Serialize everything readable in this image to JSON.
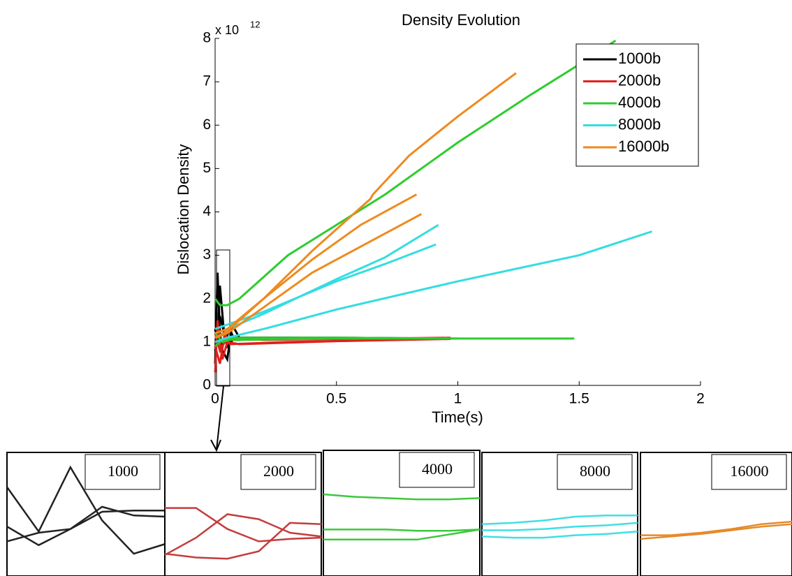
{
  "chart_data": [
    {
      "type": "line",
      "title": "Density Evolution",
      "x_label": "Time(s)",
      "y_label": "Dislocation Density",
      "y_multiplier": "x 10",
      "y_exponent": "12",
      "xlim": [
        0,
        2
      ],
      "xticks": [
        0,
        0.5,
        1,
        1.5,
        2
      ],
      "ylim": [
        0,
        8
      ],
      "yticks": [
        0,
        1,
        2,
        3,
        4,
        5,
        6,
        7,
        8
      ],
      "legend": "upper-right",
      "series": [
        {
          "name": "1000b",
          "color": "#000000",
          "runs": [
            {
              "x": [
                0,
                0.01,
                0.02,
                0.03,
                0.05,
                0.07,
                0.1,
                0.3,
                0.6,
                0.97
              ],
              "values": [
                0.5,
                2.6,
                1.2,
                0.8,
                0.6,
                1.4,
                1.1,
                1.1,
                1.08,
                1.08
              ]
            },
            {
              "x": [
                0,
                0.01,
                0.02,
                0.04,
                0.06,
                0.08,
                0.3,
                0.97
              ],
              "values": [
                1.3,
                1.0,
                2.3,
                1.0,
                1.3,
                1.05,
                1.07,
                1.08
              ]
            },
            {
              "x": [
                0,
                0.02,
                0.05,
                0.08,
                0.5,
                0.97
              ],
              "values": [
                0.8,
                1.6,
                0.9,
                1.1,
                1.1,
                1.08
              ]
            }
          ]
        },
        {
          "name": "2000b",
          "color": "#e0201b",
          "runs": [
            {
              "x": [
                0,
                0.01,
                0.03,
                0.05,
                0.1,
                0.5,
                0.97
              ],
              "values": [
                0.3,
                1.5,
                0.6,
                1.0,
                0.95,
                1.02,
                1.07
              ]
            },
            {
              "x": [
                0,
                0.02,
                0.04,
                0.06,
                0.3,
                0.97
              ],
              "values": [
                0.9,
                0.5,
                1.2,
                0.95,
                1.0,
                1.08
              ]
            },
            {
              "x": [
                0,
                0.02,
                0.05,
                0.2,
                0.97
              ],
              "values": [
                1.2,
                0.8,
                1.1,
                1.05,
                1.1
              ]
            }
          ]
        },
        {
          "name": "4000b",
          "color": "#2ecc2e",
          "runs": [
            {
              "x": [
                0,
                0.02,
                0.05,
                0.1,
                0.2,
                0.3,
                0.5,
                0.7,
                1.0,
                1.3,
                1.5,
                1.65
              ],
              "values": [
                2.0,
                1.85,
                1.85,
                2.0,
                2.5,
                3.0,
                3.7,
                4.4,
                5.6,
                6.7,
                7.4,
                7.95
              ]
            },
            {
              "x": [
                0,
                0.03,
                0.06,
                0.5,
                1.0,
                1.48
              ],
              "values": [
                0.9,
                1.05,
                1.1,
                1.1,
                1.08,
                1.08
              ]
            },
            {
              "x": [
                0,
                0.03,
                0.06,
                0.5,
                1.0
              ],
              "values": [
                1.2,
                1.0,
                1.05,
                1.08,
                1.08
              ]
            }
          ]
        },
        {
          "name": "8000b",
          "color": "#33dde0",
          "runs": [
            {
              "x": [
                0,
                0.05,
                0.2,
                0.5,
                1.0,
                1.5,
                1.8
              ],
              "values": [
                1.0,
                1.1,
                1.3,
                1.75,
                2.4,
                3.0,
                3.55
              ]
            },
            {
              "x": [
                0,
                0.05,
                0.2,
                0.5,
                0.7,
                0.91
              ],
              "values": [
                1.3,
                1.4,
                1.7,
                2.4,
                2.8,
                3.25
              ]
            },
            {
              "x": [
                0,
                0.05,
                0.2,
                0.5,
                0.7,
                0.92
              ],
              "values": [
                1.2,
                1.3,
                1.65,
                2.45,
                2.95,
                3.7
              ]
            }
          ]
        },
        {
          "name": "16000b",
          "color": "#ee8a1e",
          "runs": [
            {
              "x": [
                0,
                0.05,
                0.2,
                0.4,
                0.6,
                0.64,
                0.65,
                0.8,
                1.0,
                1.24
              ],
              "values": [
                1.2,
                1.3,
                2.0,
                3.1,
                4.1,
                4.3,
                4.4,
                5.3,
                6.2,
                7.2
              ]
            },
            {
              "x": [
                0,
                0.05,
                0.2,
                0.4,
                0.6,
                0.83
              ],
              "values": [
                1.1,
                1.25,
                2.0,
                2.9,
                3.7,
                4.4
              ]
            },
            {
              "x": [
                0,
                0.05,
                0.2,
                0.4,
                0.6,
                0.85
              ],
              "values": [
                1.1,
                1.2,
                1.8,
                2.6,
                3.2,
                3.95
              ]
            }
          ]
        }
      ]
    },
    {
      "type": "inset",
      "label": "1000",
      "color": "#222222",
      "xlim": [
        0,
        1
      ],
      "ylim": [
        0,
        1
      ],
      "runs": [
        {
          "x": [
            0,
            0.2,
            0.4,
            0.6,
            0.8,
            1
          ],
          "values": [
            0.72,
            0.36,
            0.88,
            0.45,
            0.18,
            0.26
          ]
        },
        {
          "x": [
            0,
            0.2,
            0.4,
            0.6,
            0.8,
            1
          ],
          "values": [
            0.4,
            0.25,
            0.38,
            0.52,
            0.53,
            0.53
          ]
        },
        {
          "x": [
            0,
            0.2,
            0.4,
            0.6,
            0.8,
            1
          ],
          "values": [
            0.28,
            0.35,
            0.38,
            0.56,
            0.49,
            0.48
          ]
        }
      ]
    },
    {
      "type": "inset",
      "label": "2000",
      "color": "#c43c3c",
      "xlim": [
        0,
        1
      ],
      "ylim": [
        0,
        1
      ],
      "runs": [
        {
          "x": [
            0,
            0.2,
            0.4,
            0.6,
            0.8,
            1
          ],
          "values": [
            0.55,
            0.55,
            0.38,
            0.28,
            0.3,
            0.31
          ]
        },
        {
          "x": [
            0,
            0.2,
            0.4,
            0.6,
            0.8,
            1
          ],
          "values": [
            0.17,
            0.31,
            0.5,
            0.46,
            0.35,
            0.32
          ]
        },
        {
          "x": [
            0,
            0.2,
            0.4,
            0.6,
            0.8,
            1
          ],
          "values": [
            0.18,
            0.15,
            0.14,
            0.2,
            0.43,
            0.42
          ]
        }
      ]
    },
    {
      "type": "inset",
      "label": "4000",
      "color": "#3cc83c",
      "xlim": [
        0,
        1
      ],
      "ylim": [
        0,
        1
      ],
      "runs": [
        {
          "x": [
            0,
            0.2,
            0.4,
            0.6,
            0.8,
            1
          ],
          "values": [
            0.65,
            0.63,
            0.62,
            0.61,
            0.61,
            0.62
          ]
        },
        {
          "x": [
            0,
            0.2,
            0.4,
            0.6,
            0.8,
            1
          ],
          "values": [
            0.37,
            0.37,
            0.37,
            0.36,
            0.36,
            0.37
          ]
        },
        {
          "x": [
            0,
            0.2,
            0.4,
            0.6,
            0.8,
            1
          ],
          "values": [
            0.29,
            0.29,
            0.29,
            0.29,
            0.33,
            0.37
          ]
        }
      ]
    },
    {
      "type": "inset",
      "label": "8000",
      "color": "#40dfe3",
      "xlim": [
        0,
        1
      ],
      "ylim": [
        0,
        1
      ],
      "runs": [
        {
          "x": [
            0,
            0.2,
            0.4,
            0.6,
            0.8,
            1
          ],
          "values": [
            0.42,
            0.43,
            0.45,
            0.48,
            0.49,
            0.49
          ]
        },
        {
          "x": [
            0,
            0.2,
            0.4,
            0.6,
            0.8,
            1
          ],
          "values": [
            0.37,
            0.37,
            0.38,
            0.4,
            0.41,
            0.43
          ]
        },
        {
          "x": [
            0,
            0.2,
            0.4,
            0.6,
            0.8,
            1
          ],
          "values": [
            0.32,
            0.31,
            0.31,
            0.33,
            0.34,
            0.36
          ]
        }
      ]
    },
    {
      "type": "inset",
      "label": "16000",
      "color": "#e58a2a",
      "xlim": [
        0,
        1
      ],
      "ylim": [
        0,
        1
      ],
      "runs": [
        {
          "x": [
            0,
            0.2,
            0.4,
            0.6,
            0.8,
            1
          ],
          "values": [
            0.33,
            0.33,
            0.35,
            0.38,
            0.42,
            0.44
          ]
        },
        {
          "x": [
            0,
            0.2,
            0.4,
            0.6,
            0.8,
            1
          ],
          "values": [
            0.3,
            0.32,
            0.34,
            0.37,
            0.4,
            0.42
          ]
        }
      ]
    }
  ]
}
